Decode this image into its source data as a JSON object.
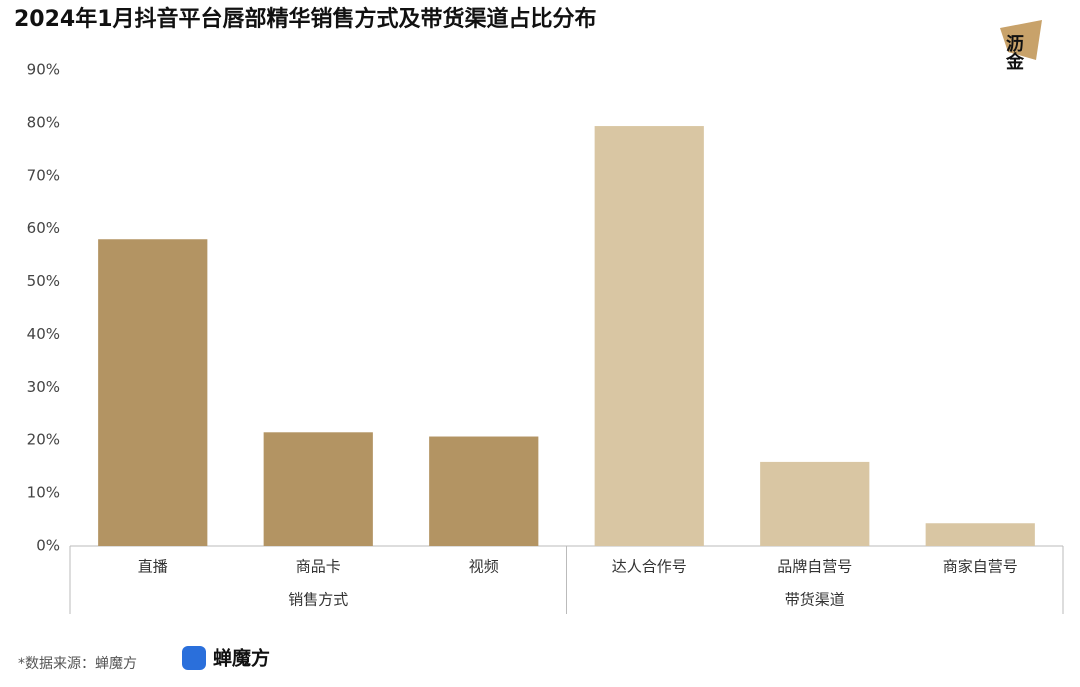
{
  "chart_data": {
    "type": "bar",
    "title": "2024年1月抖音平台唇部精华销售方式及带货渠道占比分布",
    "groups": [
      {
        "name": "销售方式",
        "color": "#b39463",
        "categories": [
          "直播",
          "商品卡",
          "视频"
        ],
        "values": [
          58,
          21.5,
          20.7
        ]
      },
      {
        "name": "带货渠道",
        "color": "#d9c6a3",
        "categories": [
          "达人合作号",
          "品牌自营号",
          "商家自营号"
        ],
        "values": [
          79.4,
          15.9,
          4.3
        ]
      }
    ],
    "ylim": [
      0,
      90
    ],
    "yticks": [
      {
        "value": 0,
        "label": "0%"
      },
      {
        "value": 10,
        "label": "10%"
      },
      {
        "value": 20,
        "label": "20%"
      },
      {
        "value": 30,
        "label": "30%"
      },
      {
        "value": 40,
        "label": "40%"
      },
      {
        "value": 50,
        "label": "50%"
      },
      {
        "value": 60,
        "label": "60%"
      },
      {
        "value": 70,
        "label": "70%"
      },
      {
        "value": 80,
        "label": "80%"
      },
      {
        "value": 90,
        "label": "90%"
      }
    ],
    "grid": false
  },
  "source": "*数据来源：蝉魔方",
  "brand_logo": "蝉魔方",
  "corner_logo": "沥金"
}
